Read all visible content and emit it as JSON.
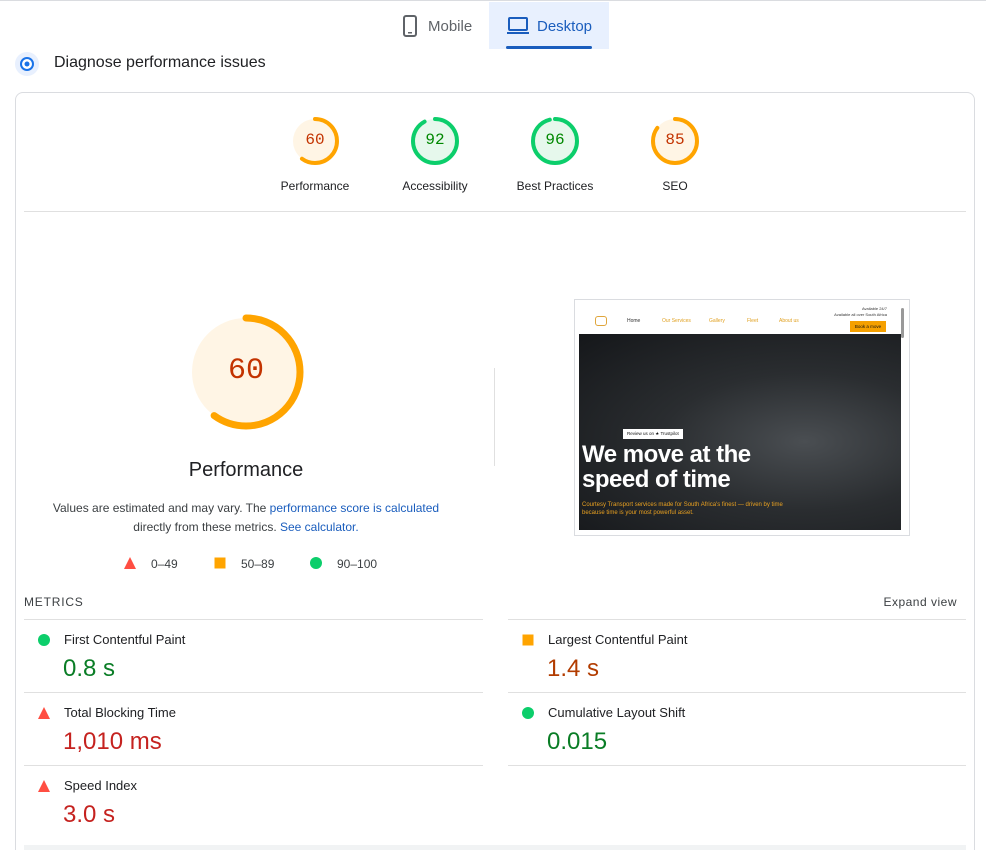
{
  "tabs": [
    "Mobile",
    "Desktop"
  ],
  "section_title": "Diagnose performance issues",
  "scores": [
    {
      "label": "Performance",
      "score": 60
    },
    {
      "label": "Accessibility",
      "score": 92
    },
    {
      "label": "Best Practices",
      "score": 96
    },
    {
      "label": "SEO",
      "score": 85
    }
  ],
  "note": [
    "Values are estimated and may vary. The ",
    "performance score is calculated",
    "directly from these metrics. ",
    "See calculator."
  ],
  "legend": [
    "0–49",
    "50–89",
    "90–100"
  ],
  "screenshot": {
    "nav": [
      "Home",
      "Our Services",
      "Gallery",
      "Fleet",
      "About us"
    ],
    "availability": [
      "Available 24/7",
      "Available all over South Africa"
    ],
    "button": "Book a move",
    "badge": "Review us on ★ Trustpilot",
    "headline": [
      "We move at the",
      "speed of time"
    ],
    "subtitle": [
      "Courtesy Transport services made for South Africa's finest — driven by time",
      "because time is your most powerful asset."
    ]
  },
  "metrics": {
    "heading": "METRICS",
    "expand": "Expand view",
    "items": [
      {
        "name": "First Contentful Paint",
        "value": "0.8 s",
        "icon": "circle"
      },
      {
        "name": "Largest Contentful Paint",
        "value": "1.4 s",
        "icon": "square"
      },
      {
        "name": "Total Blocking Time",
        "value": "1,010 ms",
        "icon": "triangle"
      },
      {
        "name": "Cumulative Layout Shift",
        "value": "0.015",
        "icon": "circle"
      },
      {
        "name": "Speed Index",
        "value": "3.0 s",
        "icon": "triangle"
      }
    ]
  }
}
